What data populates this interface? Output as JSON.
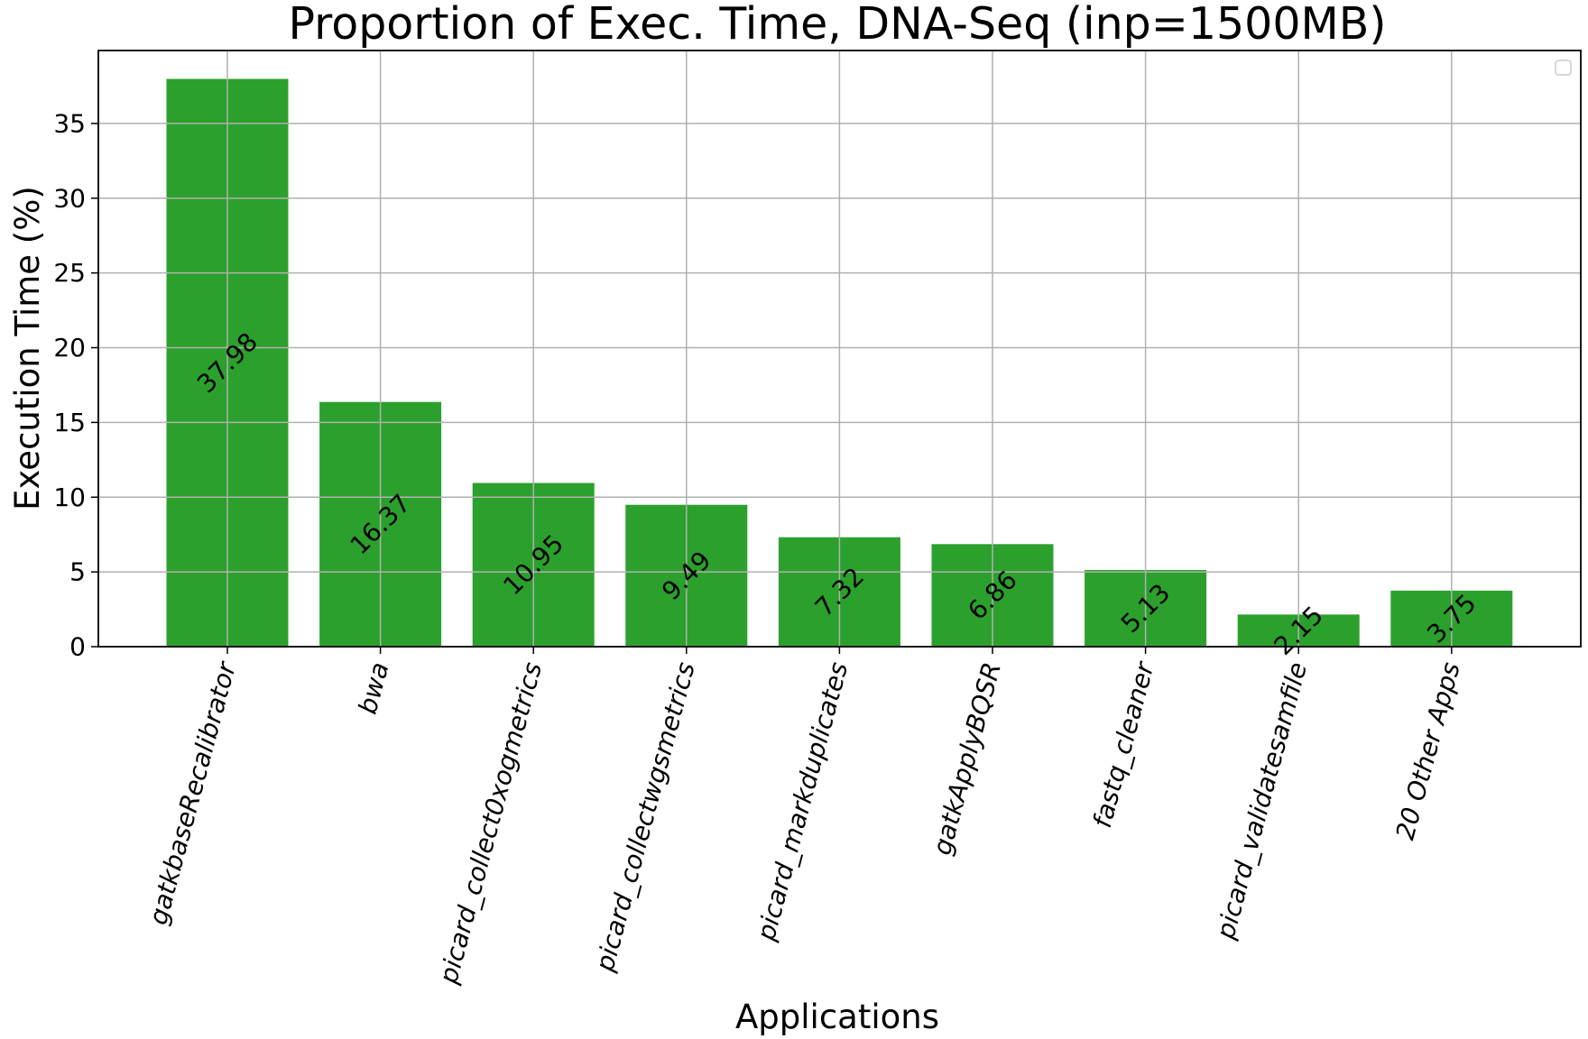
{
  "chart_data": {
    "type": "bar",
    "title": "Proportion of Exec. Time, DNA-Seq (inp=1500MB)",
    "xlabel": "Applications",
    "ylabel": "Execution Time (%)",
    "categories": [
      "gatkbaseRecalibrator",
      "bwa",
      "picard_collect0xogmetrics",
      "picard_collectwgsmetrics",
      "picard_markduplicates",
      "gatkApplyBQSR",
      "fastq_cleaner",
      "picard_validatesamfile",
      "20 Other Apps"
    ],
    "values": [
      37.98,
      16.37,
      10.95,
      9.49,
      7.32,
      6.86,
      5.13,
      2.15,
      3.75
    ],
    "data_labels": [
      "37.98",
      "16.37",
      "10.95",
      "9.49",
      "7.32",
      "6.86",
      "5.13",
      "2.15",
      "3.75"
    ],
    "yticks": [
      0,
      5,
      10,
      15,
      20,
      25,
      30,
      35
    ],
    "ytick_labels": [
      "0",
      "5",
      "10",
      "15",
      "20",
      "25",
      "30",
      "35"
    ],
    "ylim": [
      0,
      39.88
    ],
    "grid": true,
    "legend": "top-right, empty",
    "colors": {
      "bar": "#2ca02c",
      "grid": "#b0b0b0",
      "axis": "#000000",
      "background": "#ffffff"
    }
  }
}
